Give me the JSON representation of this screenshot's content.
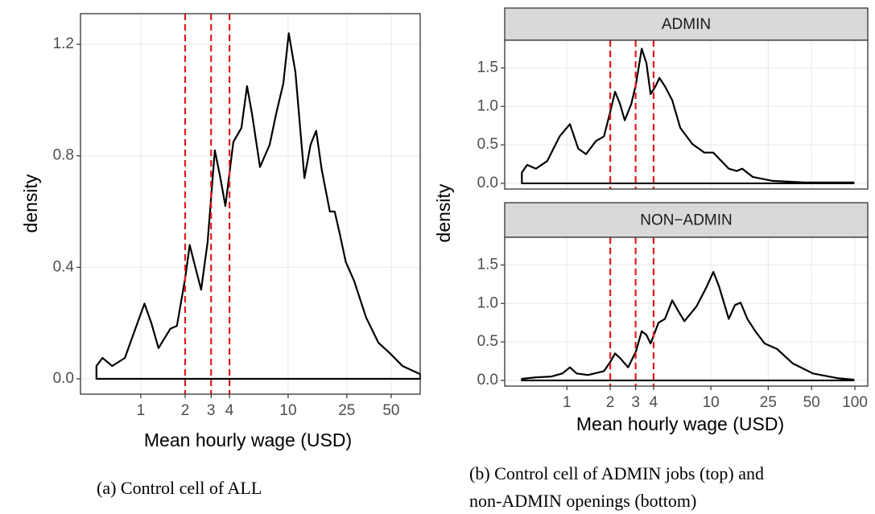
{
  "chart_data": [
    {
      "type": "density",
      "x_label": "Mean hourly wage (USD)",
      "y_label": "density",
      "caption": "(a) Control cell of ALL",
      "log_x": true,
      "grid": true,
      "color": "#000000",
      "vline_color": "#e41a1c",
      "vlines": [
        2,
        3,
        4
      ],
      "xlim": [
        0.39,
        78.7
      ],
      "ylim": [
        -0.055,
        1.31
      ],
      "xticks": [
        1,
        2,
        3,
        4,
        10,
        25,
        50,
        100
      ],
      "yticks": [
        {
          "value": 0,
          "label": "0.0"
        },
        0.4,
        0.8,
        1.2
      ],
      "x": [
        0.5,
        0.5,
        0.55,
        0.64,
        0.78,
        0.92,
        1.06,
        1.18,
        1.32,
        1.59,
        1.76,
        2.0,
        2.15,
        2.32,
        2.57,
        2.84,
        3.18,
        3.47,
        3.75,
        4.25,
        4.82,
        5.26,
        5.69,
        6.44,
        7.49,
        8.28,
        9.28,
        10.1,
        11.2,
        12.9,
        14.2,
        15.5,
        16.9,
        19.2,
        20.7,
        22.4,
        24.6,
        28.1,
        33.8,
        40.9,
        49.5,
        59.7,
        78.7
      ],
      "values": [
        0.0,
        0.046,
        0.075,
        0.046,
        0.075,
        0.18,
        0.27,
        0.2,
        0.11,
        0.18,
        0.19,
        0.36,
        0.48,
        0.41,
        0.32,
        0.49,
        0.82,
        0.72,
        0.62,
        0.85,
        0.9,
        1.05,
        0.95,
        0.76,
        0.84,
        0.95,
        1.06,
        1.24,
        1.1,
        0.72,
        0.84,
        0.89,
        0.75,
        0.6,
        0.6,
        0.52,
        0.42,
        0.35,
        0.22,
        0.13,
        0.09,
        0.046,
        0.017
      ]
    },
    {
      "type": "density_facets",
      "x_label": "Mean hourly wage (USD)",
      "y_label": "density",
      "caption": [
        "(b) Control cell of ADMIN jobs (top) and",
        "non-ADMIN openings (bottom)"
      ],
      "log_x": true,
      "grid": true,
      "color": "#000000",
      "vline_color": "#e41a1c",
      "vlines": [
        2,
        3,
        4
      ],
      "xlim": [
        0.37,
        122.8
      ],
      "ylim": [
        -0.074,
        1.86
      ],
      "xticks": [
        1,
        2,
        3,
        4,
        10,
        25,
        50,
        100
      ],
      "yticks": [
        {
          "value": 0,
          "label": "0.0"
        },
        0.5,
        {
          "value": 1,
          "label": "1.0"
        },
        1.5
      ],
      "facets": [
        {
          "strip": "ADMIN",
          "x": [
            0.487,
            0.487,
            0.53,
            0.61,
            0.73,
            0.89,
            1.05,
            1.2,
            1.36,
            1.59,
            1.81,
            2.0,
            2.16,
            2.34,
            2.52,
            2.8,
            3.02,
            3.31,
            3.57,
            3.81,
            4.12,
            4.39,
            4.8,
            5.39,
            6.13,
            7.44,
            9.0,
            10.4,
            11.4,
            13.3,
            15.1,
            16.5,
            19.5,
            26.9,
            45.0,
            97.9
          ],
          "values": [
            0.0,
            0.14,
            0.24,
            0.19,
            0.29,
            0.61,
            0.77,
            0.45,
            0.38,
            0.55,
            0.61,
            0.93,
            1.19,
            1.03,
            0.82,
            1.03,
            1.29,
            1.75,
            1.56,
            1.16,
            1.26,
            1.37,
            1.26,
            1.08,
            0.72,
            0.51,
            0.4,
            0.4,
            0.32,
            0.19,
            0.16,
            0.19,
            0.084,
            0.032,
            0.011,
            0.011
          ]
        },
        {
          "strip": "NON−ADMIN",
          "x": [
            0.487,
            0.61,
            0.78,
            0.93,
            1.05,
            1.17,
            1.4,
            1.81,
            2.0,
            2.16,
            2.34,
            2.66,
            3.02,
            3.31,
            3.57,
            3.81,
            4.33,
            4.8,
            5.39,
            5.9,
            6.54,
            7.93,
            9.25,
            10.4,
            11.4,
            13.3,
            14.7,
            16.1,
            17.9,
            20.3,
            23.6,
            28.7,
            37.1,
            51.2,
            75.4,
            97.9
          ],
          "values": [
            0.02,
            0.04,
            0.05,
            0.09,
            0.17,
            0.09,
            0.07,
            0.12,
            0.24,
            0.35,
            0.29,
            0.17,
            0.38,
            0.64,
            0.59,
            0.48,
            0.75,
            0.8,
            1.04,
            0.91,
            0.77,
            0.96,
            1.2,
            1.41,
            1.22,
            0.8,
            0.98,
            1.01,
            0.8,
            0.64,
            0.48,
            0.41,
            0.22,
            0.09,
            0.03,
            0.01
          ]
        }
      ]
    }
  ]
}
